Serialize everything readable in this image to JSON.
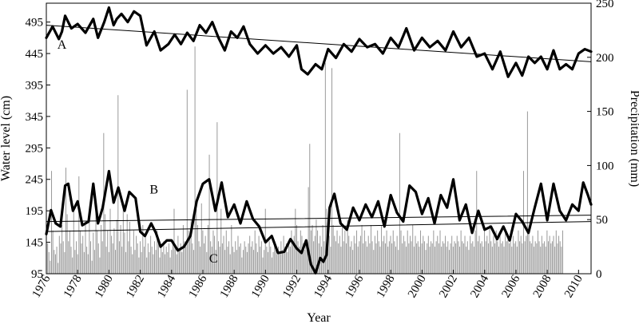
{
  "chart_data": {
    "type": "line",
    "xlabel": "Year",
    "ylabel": "Water level  (cm)",
    "y2label": "Precipitation  (mm)",
    "xlim": [
      1976,
      2010.8
    ],
    "ylim": [
      95,
      525
    ],
    "y2lim": [
      0,
      250
    ],
    "x_ticks": [
      1976,
      1978,
      1980,
      1982,
      1984,
      1986,
      1988,
      1990,
      1992,
      1994,
      1996,
      1998,
      2000,
      2002,
      2004,
      2006,
      2008,
      2010
    ],
    "y_ticks": [
      95,
      145,
      195,
      245,
      295,
      345,
      395,
      445,
      495
    ],
    "y2_ticks": [
      0,
      50,
      100,
      150,
      200,
      250
    ],
    "grid": false,
    "series_labels": {
      "A": "A",
      "B": "B",
      "C": "C"
    },
    "series": [
      {
        "label": "A",
        "axis": "left",
        "x": [
          1976.0,
          1976.4,
          1976.8,
          1977.0,
          1977.2,
          1977.6,
          1978.0,
          1978.5,
          1979.0,
          1979.3,
          1979.7,
          1980.0,
          1980.3,
          1980.5,
          1980.8,
          1981.2,
          1981.6,
          1982.0,
          1982.4,
          1982.9,
          1983.3,
          1983.8,
          1984.2,
          1984.6,
          1985.0,
          1985.4,
          1985.8,
          1986.2,
          1986.6,
          1987.0,
          1987.4,
          1987.8,
          1988.2,
          1988.6,
          1989.0,
          1989.5,
          1990.0,
          1990.5,
          1991.0,
          1991.5,
          1992.0,
          1992.3,
          1992.7,
          1993.2,
          1993.6,
          1994.0,
          1994.5,
          1995.0,
          1995.5,
          1996.0,
          1996.5,
          1997.0,
          1997.5,
          1998.0,
          1998.5,
          1999.0,
          1999.5,
          2000.0,
          2000.5,
          2001.0,
          2001.5,
          2002.0,
          2002.5,
          2003.0,
          2003.5,
          2004.0,
          2004.5,
          2005.0,
          2005.5,
          2006.0,
          2006.4,
          2006.8,
          2007.2,
          2007.6,
          2008.0,
          2008.4,
          2008.8,
          2009.2,
          2009.6,
          2010.0,
          2010.4,
          2010.8
        ],
        "y": [
          470,
          488,
          468,
          480,
          505,
          485,
          492,
          478,
          500,
          470,
          495,
          518,
          490,
          500,
          508,
          495,
          512,
          505,
          458,
          480,
          450,
          460,
          475,
          460,
          478,
          465,
          490,
          478,
          495,
          470,
          450,
          480,
          470,
          488,
          460,
          445,
          458,
          445,
          455,
          440,
          458,
          420,
          412,
          428,
          420,
          452,
          438,
          460,
          448,
          468,
          455,
          460,
          445,
          470,
          455,
          485,
          450,
          470,
          455,
          465,
          450,
          480,
          455,
          470,
          440,
          445,
          420,
          448,
          408,
          430,
          410,
          440,
          430,
          440,
          420,
          450,
          420,
          428,
          420,
          445,
          452,
          448
        ]
      },
      {
        "label": "A trend",
        "axis": "left",
        "x": [
          1976.0,
          2010.8
        ],
        "y": [
          490,
          432
        ]
      },
      {
        "label": "B",
        "axis": "left",
        "x": [
          1976.0,
          1976.3,
          1976.6,
          1976.9,
          1977.2,
          1977.4,
          1977.7,
          1978.0,
          1978.3,
          1978.7,
          1979.0,
          1979.3,
          1979.6,
          1980.0,
          1980.3,
          1980.6,
          1981.0,
          1981.3,
          1981.7,
          1982.0,
          1982.3,
          1982.7,
          1983.0,
          1983.3,
          1983.7,
          1984.0,
          1984.4,
          1984.8,
          1985.2,
          1985.6,
          1986.0,
          1986.4,
          1986.8,
          1987.2,
          1987.6,
          1988.0,
          1988.4,
          1988.8,
          1989.2,
          1989.6,
          1990.0,
          1990.4,
          1990.8,
          1991.2,
          1991.6,
          1992.0,
          1992.3,
          1992.6,
          1992.9,
          1993.2,
          1993.5,
          1993.7,
          1993.9,
          1994.1,
          1994.4,
          1994.8,
          1995.2,
          1995.6,
          1996.0,
          1996.4,
          1996.8,
          1997.2,
          1997.6,
          1998.0,
          1998.4,
          1998.8,
          1999.2,
          1999.6,
          2000.0,
          2000.4,
          2000.8,
          2001.2,
          2001.6,
          2002.0,
          2002.4,
          2002.8,
          2003.2,
          2003.6,
          2004.0,
          2004.4,
          2004.8,
          2005.2,
          2005.6,
          2006.0,
          2006.4,
          2006.8,
          2007.2,
          2007.6,
          2008.0,
          2008.4,
          2008.8,
          2009.2,
          2009.6,
          2010.0,
          2010.3,
          2010.6,
          2010.8
        ],
        "y": [
          158,
          196,
          175,
          170,
          235,
          238,
          195,
          210,
          172,
          178,
          238,
          175,
          200,
          258,
          208,
          232,
          195,
          225,
          215,
          162,
          155,
          175,
          160,
          138,
          148,
          148,
          132,
          138,
          155,
          210,
          238,
          245,
          195,
          240,
          185,
          205,
          175,
          210,
          182,
          170,
          145,
          155,
          128,
          130,
          150,
          135,
          128,
          148,
          110,
          96,
          120,
          114,
          125,
          200,
          222,
          175,
          165,
          200,
          180,
          205,
          185,
          210,
          170,
          220,
          192,
          178,
          235,
          225,
          190,
          215,
          175,
          220,
          200,
          245,
          180,
          205,
          160,
          195,
          165,
          170,
          150,
          170,
          148,
          190,
          178,
          160,
          200,
          238,
          180,
          238,
          195,
          180,
          205,
          195,
          240,
          220,
          205
        ]
      },
      {
        "label": "B trend 1",
        "axis": "left",
        "x": [
          1976.0,
          2010.8
        ],
        "y": [
          178,
          188
        ]
      },
      {
        "label": "B trend 2",
        "axis": "left",
        "x": [
          1976.0,
          2010.8
        ],
        "y": [
          162,
          178
        ]
      },
      {
        "label": "C",
        "axis": "right",
        "kind": "bars",
        "x_start": 1976.0,
        "step": 0.0833,
        "values": [
          15,
          28,
          20,
          12,
          95,
          40,
          22,
          18,
          25,
          10,
          35,
          28,
          45,
          30,
          20,
          98,
          55,
          30,
          40,
          25,
          15,
          60,
          22,
          30,
          18,
          90,
          40,
          28,
          35,
          20,
          45,
          25,
          18,
          55,
          30,
          12,
          38,
          22,
          65,
          40,
          28,
          15,
          45,
          30,
          130,
          55,
          25,
          40,
          20,
          60,
          35,
          28,
          42,
          22,
          50,
          165,
          30,
          45,
          25,
          60,
          38,
          20,
          55,
          30,
          48,
          25,
          18,
          40,
          22,
          35,
          28,
          15,
          30,
          20,
          45,
          25,
          38,
          15,
          28,
          20,
          35,
          25,
          18,
          30,
          22,
          40,
          28,
          15,
          25,
          20,
          30,
          18,
          25,
          20,
          28,
          15,
          22,
          30,
          60,
          25,
          18,
          35,
          22,
          28,
          20,
          45,
          30,
          25,
          170,
          40,
          35,
          50,
          28,
          22,
          210,
          60,
          45,
          30,
          25,
          65,
          40,
          28,
          35,
          20,
          45,
          110,
          30,
          25,
          40,
          35,
          22,
          140,
          30,
          25,
          60,
          28,
          35,
          22,
          40,
          25,
          30,
          18,
          45,
          25,
          20,
          30,
          22,
          35,
          25,
          28,
          15,
          22,
          30,
          25,
          20,
          28,
          35,
          25,
          30,
          22,
          40,
          28,
          20,
          35,
          25,
          30,
          15,
          22,
          60,
          25,
          20,
          30,
          25,
          15,
          20,
          28,
          22,
          18,
          25,
          20,
          30,
          22,
          35,
          25,
          28,
          20,
          30,
          25,
          40,
          28,
          35,
          60,
          45,
          30,
          25,
          40,
          35,
          28,
          22,
          30,
          25,
          80,
          120,
          40,
          45,
          30,
          35,
          50,
          40,
          28,
          35,
          25,
          45,
          30,
          195,
          60,
          40,
          35,
          25,
          190,
          45,
          35,
          30,
          40,
          28,
          35,
          25,
          45,
          30,
          40,
          28,
          50,
          35,
          25,
          30,
          22,
          35,
          28,
          40,
          25,
          30,
          35,
          45,
          28,
          40,
          30,
          25,
          35,
          28,
          45,
          30,
          22,
          35,
          28,
          40,
          30,
          25,
          45,
          30,
          35,
          28,
          40,
          25,
          30,
          35,
          28,
          40,
          30,
          25,
          35,
          22,
          130,
          40,
          28,
          35,
          30,
          25,
          40,
          28,
          35,
          30,
          45,
          25,
          35,
          28,
          30,
          25,
          40,
          28,
          35,
          30,
          22,
          28,
          35,
          25,
          30,
          28,
          40,
          25,
          30,
          35,
          28,
          40,
          25,
          30,
          28,
          35,
          25,
          30,
          22,
          28,
          35,
          25,
          30,
          28,
          35,
          30,
          25,
          40,
          30,
          28,
          35,
          25,
          30,
          22,
          35,
          28,
          30,
          25,
          40,
          95,
          30,
          35,
          28,
          30,
          25,
          40,
          30,
          35,
          28,
          45,
          30,
          25,
          35,
          28,
          40,
          30,
          25,
          35,
          28,
          30,
          25,
          40,
          30,
          35,
          28,
          30,
          25,
          35,
          28,
          30,
          25,
          40,
          30,
          35,
          28,
          95,
          30,
          35,
          150,
          40,
          30,
          28,
          35,
          25,
          30,
          28,
          40,
          30,
          25,
          35,
          28,
          30,
          25,
          40,
          30,
          35,
          28,
          30,
          35,
          25,
          40,
          28,
          35,
          30,
          25,
          40
        ]
      }
    ]
  }
}
